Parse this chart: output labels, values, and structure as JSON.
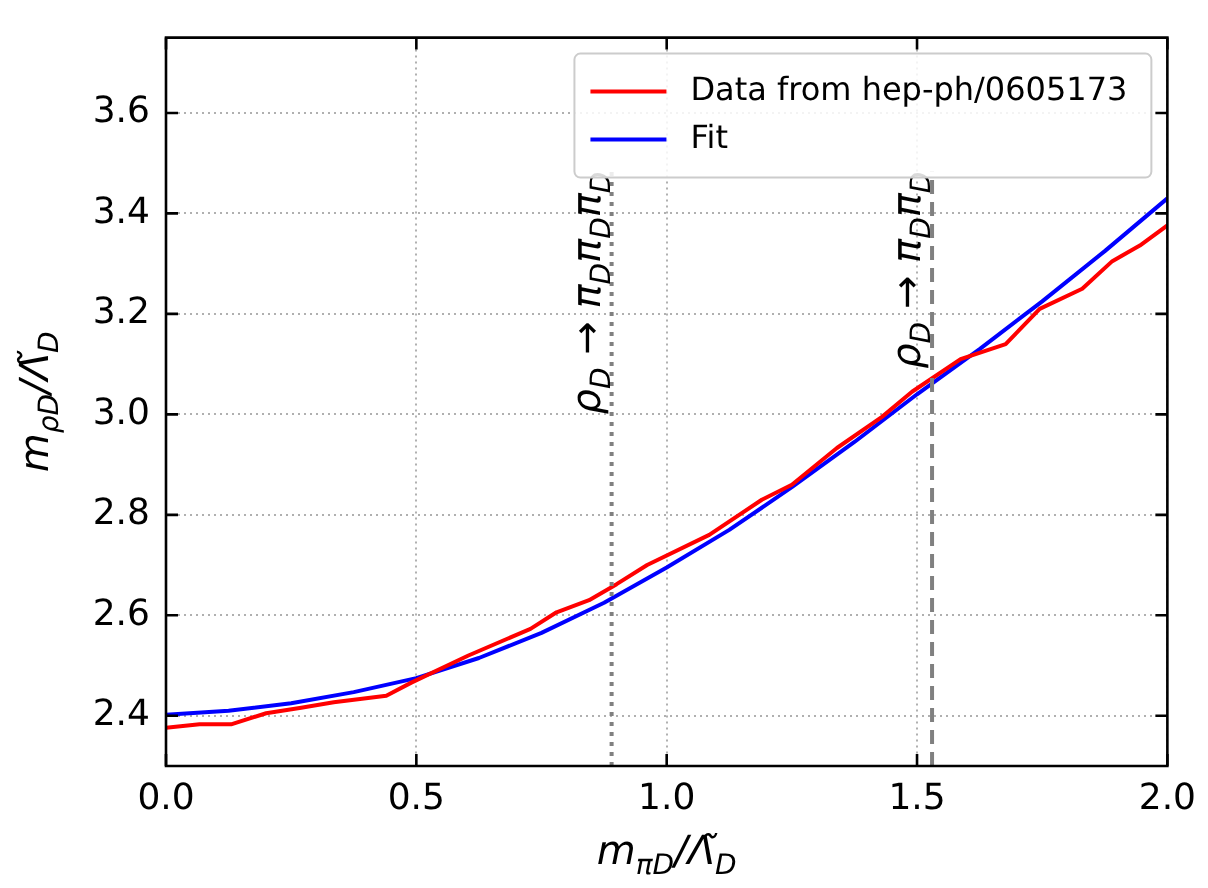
{
  "chart_data": {
    "type": "line",
    "xlabel": "m$_{πD}$/Λ̃$_{D}$",
    "ylabel": "m$_{ρD}$/Λ̃$_{D}$",
    "xlim": [
      0,
      2
    ],
    "xticks": [
      {
        "value": 0,
        "label": "0.0"
      },
      {
        "value": 0.5,
        "label": "0.5"
      },
      {
        "value": 1,
        "label": "1.0"
      },
      {
        "value": 1.5,
        "label": "1.5"
      },
      {
        "value": 2,
        "label": "2.0"
      }
    ],
    "ylim": [
      2.3,
      3.75
    ],
    "yticks": [
      {
        "value": 2.4,
        "label": "2.4"
      },
      {
        "value": 2.6,
        "label": "2.6"
      },
      {
        "value": 2.8,
        "label": "2.8"
      },
      {
        "value": 3,
        "label": "3.0"
      },
      {
        "value": 3.2,
        "label": "3.2"
      },
      {
        "value": 3.4,
        "label": "3.4"
      },
      {
        "value": 3.6,
        "label": "3.6"
      }
    ],
    "grid": true,
    "legend": "top right",
    "line_style": "solid",
    "marker": "none",
    "series": [
      {
        "name": "Data from hep-ph/0605173",
        "color": "#ff0000",
        "x": [
          0,
          0.067,
          0.13,
          0.2,
          0.27,
          0.335,
          0.44,
          0.49,
          0.604,
          0.728,
          0.78,
          0.845,
          0.9,
          0.961,
          1.085,
          1.19,
          1.25,
          1.34,
          1.43,
          1.49,
          1.587,
          1.677,
          1.745,
          1.83,
          1.89,
          1.945,
          2.0
        ],
        "values": [
          2.376,
          2.383,
          2.383,
          2.405,
          2.416,
          2.427,
          2.44,
          2.466,
          2.52,
          2.573,
          2.606,
          2.63,
          2.662,
          2.7,
          2.76,
          2.83,
          2.86,
          2.933,
          2.995,
          3.045,
          3.11,
          3.14,
          3.21,
          3.25,
          3.305,
          3.336,
          3.376
        ]
      },
      {
        "name": "Fit",
        "color": "#0000ff",
        "x": [
          0,
          0.125,
          0.25,
          0.375,
          0.5,
          0.625,
          0.75,
          0.875,
          1.0,
          1.125,
          1.25,
          1.375,
          1.5,
          1.625,
          1.75,
          1.875,
          2.0
        ],
        "values": [
          2.402,
          2.41,
          2.425,
          2.447,
          2.475,
          2.515,
          2.565,
          2.625,
          2.695,
          2.77,
          2.855,
          2.945,
          3.04,
          3.13,
          3.225,
          3.325,
          3.43
        ]
      }
    ],
    "ref_lines": [
      {
        "axis": "x",
        "value": 0.89,
        "label": "ρ$_{D}$ → π$_{D}$π$_{D}$π$_{D}$",
        "color": "#808080",
        "line_style": "dotted"
      },
      {
        "axis": "x",
        "value": 1.53,
        "label": "ρ$_{D}$ → π$_{D}$π$_{D}$",
        "color": "#808080",
        "line_style": "dashed"
      }
    ]
  }
}
